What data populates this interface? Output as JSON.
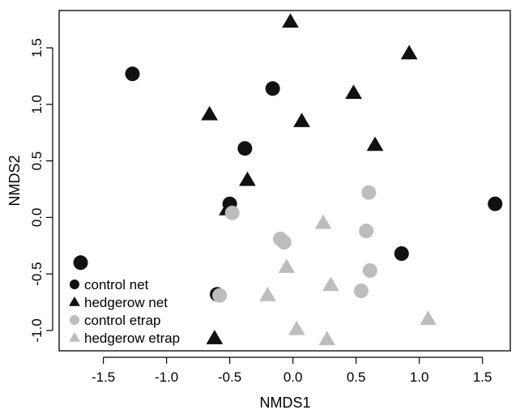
{
  "chart_data": {
    "type": "scatter",
    "title": "",
    "xlabel": "NMDS1",
    "ylabel": "NMDS2",
    "xlim": [
      -1.85,
      1.72
    ],
    "ylim": [
      -1.18,
      1.83
    ],
    "xticks": [
      -1.5,
      -1.0,
      -0.5,
      0.0,
      0.5,
      1.0,
      1.5
    ],
    "xtick_labels": [
      "-1.5",
      "-1.0",
      "-0.5",
      "0.0",
      "0.5",
      "1.0",
      "1.5"
    ],
    "yticks": [
      -1.0,
      -0.5,
      0.0,
      0.5,
      1.0,
      1.5
    ],
    "ytick_labels": [
      "-1.0",
      "-0.5",
      "0.0",
      "0.5",
      "1.0",
      "1.5"
    ],
    "grid": false,
    "legend_position": "bottom-left",
    "series": [
      {
        "name": "control net",
        "marker": "circle",
        "color": "#111111",
        "points": [
          [
            -1.27,
            1.27
          ],
          [
            -0.16,
            1.14
          ],
          [
            -0.38,
            0.61
          ],
          [
            -0.5,
            0.12
          ],
          [
            -1.68,
            -0.4
          ],
          [
            -0.6,
            -0.68
          ],
          [
            0.86,
            -0.32
          ],
          [
            1.6,
            0.12
          ]
        ]
      },
      {
        "name": "hedgerow net",
        "marker": "triangle",
        "color": "#111111",
        "points": [
          [
            -0.02,
            1.73
          ],
          [
            0.92,
            1.45
          ],
          [
            0.48,
            1.1
          ],
          [
            -0.66,
            0.91
          ],
          [
            0.07,
            0.85
          ],
          [
            0.65,
            0.64
          ],
          [
            -0.36,
            0.33
          ],
          [
            -0.52,
            0.07
          ],
          [
            -0.62,
            -1.07
          ]
        ]
      },
      {
        "name": "control etrap",
        "marker": "circle",
        "color": "#bdbdbd",
        "points": [
          [
            -0.48,
            0.04
          ],
          [
            0.6,
            0.22
          ],
          [
            -0.1,
            -0.19
          ],
          [
            -0.07,
            -0.22
          ],
          [
            0.58,
            -0.12
          ],
          [
            0.61,
            -0.47
          ],
          [
            0.54,
            -0.65
          ],
          [
            -0.58,
            -0.69
          ]
        ]
      },
      {
        "name": "hedgerow etrap",
        "marker": "triangle",
        "color": "#bdbdbd",
        "points": [
          [
            0.24,
            -0.05
          ],
          [
            -0.05,
            -0.44
          ],
          [
            0.3,
            -0.6
          ],
          [
            -0.2,
            -0.69
          ],
          [
            1.07,
            -0.9
          ],
          [
            0.03,
            -0.99
          ],
          [
            0.27,
            -1.08
          ]
        ]
      }
    ]
  }
}
